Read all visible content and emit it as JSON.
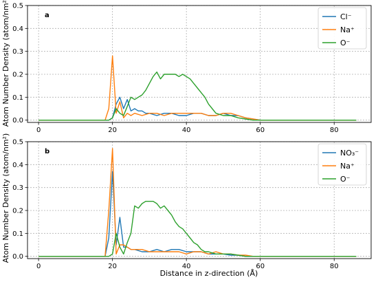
{
  "figure": {
    "ylabel": "Atom Number Density (atom/nm²)",
    "xlabel": "Distance in z-direction (Å)"
  },
  "chart_data": [
    {
      "type": "line",
      "panel_label": "a",
      "xlim": [
        -3,
        90
      ],
      "ylim": [
        -0.01,
        0.5
      ],
      "xticks": [
        0,
        20,
        40,
        60,
        80
      ],
      "yticks": [
        0.0,
        0.1,
        0.2,
        0.3,
        0.4,
        0.5
      ],
      "grid": true,
      "legend": "top-right",
      "series": [
        {
          "name": "Cl⁻",
          "color": "#1f77b4",
          "x": [
            0,
            18,
            19,
            20,
            21,
            22,
            23,
            24,
            25,
            26,
            27,
            28,
            29,
            30,
            32,
            34,
            36,
            38,
            40,
            42,
            44,
            46,
            48,
            50,
            52,
            54,
            56,
            58,
            60,
            86
          ],
          "y": [
            0,
            0,
            0,
            0.01,
            0.07,
            0.1,
            0.05,
            0.09,
            0.04,
            0.05,
            0.04,
            0.04,
            0.03,
            0.03,
            0.02,
            0.03,
            0.03,
            0.02,
            0.02,
            0.03,
            0.03,
            0.02,
            0.02,
            0.03,
            0.02,
            0.02,
            0.01,
            0.005,
            0,
            0
          ]
        },
        {
          "name": "Na⁺",
          "color": "#ff7f0e",
          "x": [
            0,
            18,
            19,
            20,
            21,
            22,
            23,
            24,
            25,
            26,
            28,
            30,
            32,
            34,
            36,
            38,
            40,
            42,
            44,
            46,
            48,
            50,
            52,
            54,
            56,
            58,
            60,
            86
          ],
          "y": [
            0,
            0,
            0.05,
            0.28,
            0.03,
            0.08,
            0.01,
            0.03,
            0.02,
            0.03,
            0.02,
            0.03,
            0.03,
            0.02,
            0.03,
            0.03,
            0.03,
            0.03,
            0.03,
            0.02,
            0.02,
            0.03,
            0.03,
            0.02,
            0.01,
            0.005,
            0,
            0
          ]
        },
        {
          "name": "O⁻",
          "color": "#2ca02c",
          "x": [
            0,
            19,
            20,
            21,
            22,
            23,
            24,
            25,
            26,
            27,
            28,
            29,
            30,
            31,
            32,
            33,
            34,
            35,
            36,
            37,
            38,
            39,
            40,
            41,
            42,
            43,
            44,
            45,
            46,
            47,
            48,
            50,
            52,
            54,
            56,
            58,
            60,
            86
          ],
          "y": [
            0,
            0,
            0.01,
            0.05,
            0.03,
            0.02,
            0.06,
            0.1,
            0.09,
            0.1,
            0.11,
            0.13,
            0.16,
            0.19,
            0.21,
            0.18,
            0.2,
            0.2,
            0.2,
            0.2,
            0.19,
            0.2,
            0.19,
            0.18,
            0.16,
            0.14,
            0.12,
            0.1,
            0.07,
            0.05,
            0.03,
            0.02,
            0.02,
            0.01,
            0.005,
            0,
            0,
            0
          ]
        }
      ]
    },
    {
      "type": "line",
      "panel_label": "b",
      "xlim": [
        -3,
        90
      ],
      "ylim": [
        -0.01,
        0.5
      ],
      "xticks": [
        0,
        20,
        40,
        60,
        80
      ],
      "yticks": [
        0.0,
        0.1,
        0.2,
        0.3,
        0.4,
        0.5
      ],
      "grid": true,
      "legend": "top-right",
      "series": [
        {
          "name": "NO₃⁻",
          "color": "#1f77b4",
          "x": [
            0,
            18,
            19,
            20,
            21,
            22,
            23,
            24,
            25,
            26,
            28,
            30,
            32,
            34,
            36,
            38,
            40,
            42,
            44,
            46,
            48,
            50,
            52,
            54,
            56,
            58,
            60,
            86
          ],
          "y": [
            0,
            0,
            0.08,
            0.37,
            0.05,
            0.17,
            0.04,
            0.04,
            0.03,
            0.03,
            0.02,
            0.02,
            0.03,
            0.02,
            0.03,
            0.03,
            0.02,
            0.02,
            0.02,
            0.01,
            0.01,
            0.01,
            0.005,
            0.005,
            0,
            0,
            0,
            0
          ]
        },
        {
          "name": "Na⁺",
          "color": "#ff7f0e",
          "x": [
            0,
            18,
            19,
            20,
            21,
            22,
            23,
            24,
            25,
            26,
            28,
            30,
            32,
            34,
            36,
            38,
            40,
            42,
            44,
            46,
            48,
            50,
            52,
            54,
            56,
            58,
            60,
            86
          ],
          "y": [
            0,
            0,
            0.2,
            0.47,
            0.01,
            0.05,
            0.05,
            0.04,
            0.03,
            0.03,
            0.03,
            0.02,
            0.02,
            0.02,
            0.02,
            0.02,
            0.01,
            0.02,
            0.02,
            0.01,
            0.02,
            0.01,
            0.01,
            0.005,
            0.005,
            0,
            0,
            0
          ]
        },
        {
          "name": "O⁻",
          "color": "#2ca02c",
          "x": [
            0,
            19,
            20,
            21,
            22,
            23,
            24,
            25,
            26,
            27,
            28,
            29,
            30,
            31,
            32,
            33,
            34,
            35,
            36,
            37,
            38,
            39,
            40,
            41,
            42,
            43,
            44,
            45,
            46,
            48,
            50,
            52,
            54,
            56,
            58,
            60,
            86
          ],
          "y": [
            0,
            0,
            0.01,
            0.1,
            0.04,
            0.01,
            0.06,
            0.1,
            0.22,
            0.21,
            0.23,
            0.24,
            0.24,
            0.24,
            0.23,
            0.21,
            0.22,
            0.2,
            0.18,
            0.15,
            0.13,
            0.12,
            0.1,
            0.08,
            0.06,
            0.05,
            0.03,
            0.02,
            0.02,
            0.01,
            0.01,
            0.01,
            0.005,
            0,
            0,
            0,
            0
          ]
        }
      ]
    }
  ]
}
